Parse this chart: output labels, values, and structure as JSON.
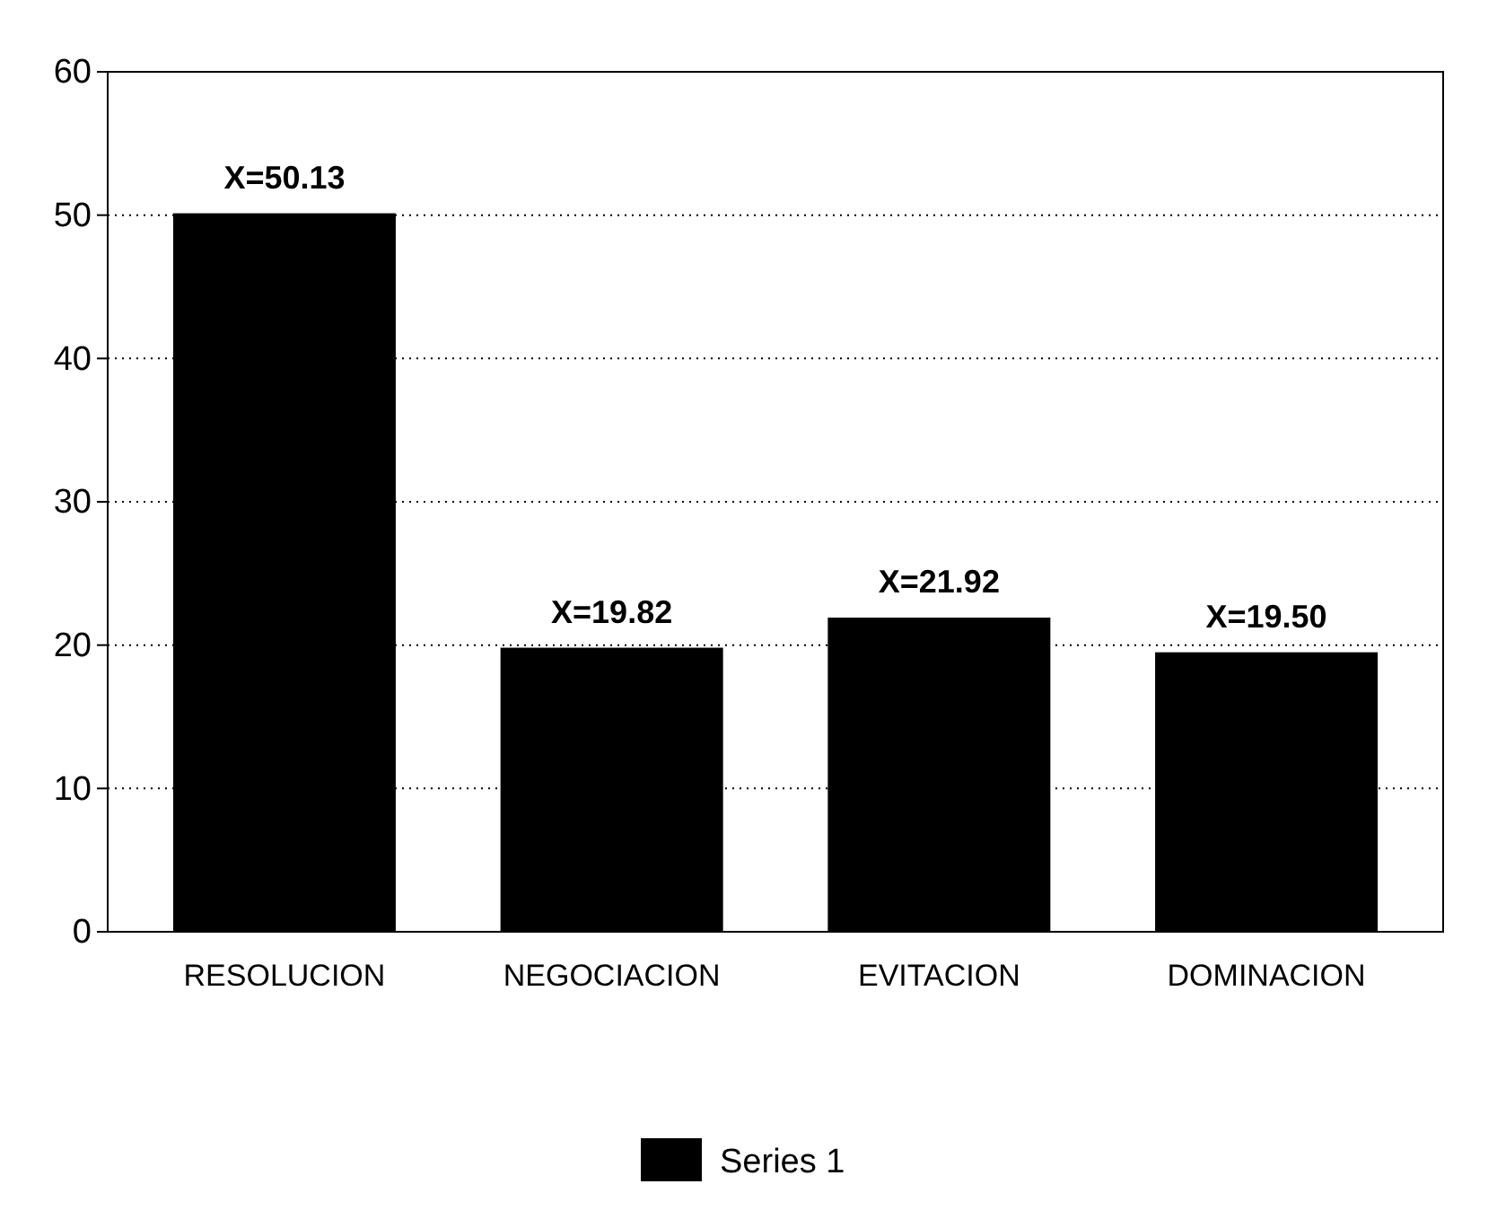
{
  "chart_data": {
    "type": "bar",
    "categories": [
      "RESOLUCION",
      "NEGOCIACION",
      "EVITACION",
      "DOMINACION"
    ],
    "series": [
      {
        "name": "Series 1",
        "color": "#000000",
        "values": [
          50.13,
          19.82,
          21.92,
          19.5
        ],
        "value_labels": [
          "X=50.13",
          "X=19.82",
          "X=21.92",
          "X=19.50"
        ]
      }
    ],
    "ylim": [
      0,
      60
    ],
    "yticks": [
      0,
      10,
      20,
      30,
      40,
      50,
      60
    ],
    "grid": "y",
    "legend": "bottom"
  }
}
